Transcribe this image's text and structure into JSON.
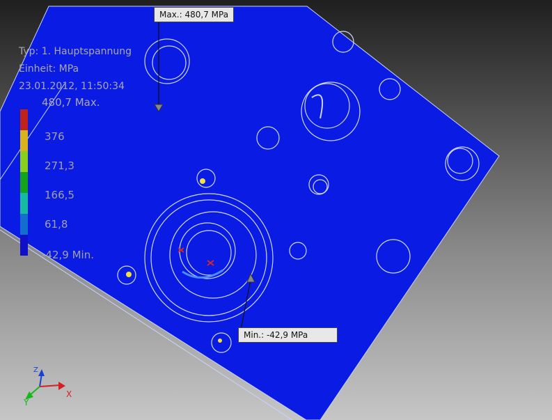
{
  "legend": {
    "type_label": "Typ: 1. Hauptspannung",
    "unit_label": "Einheit: MPa",
    "timestamp": "23.01.2012, 11:50:34",
    "max_label": "480,7 Max.",
    "min_label": "-42,9 Min.",
    "ticks": [
      "376",
      "271,3",
      "166,5",
      "61,8"
    ],
    "colors": [
      "#c0231b",
      "#d8b31d",
      "#8bcf1e",
      "#14a31c",
      "#17b9a3",
      "#136ed0",
      "#1010c8"
    ]
  },
  "probes": {
    "max": {
      "label": "Max.: 480,7 MPa"
    },
    "min": {
      "label": "Min.: -42,9 MPa"
    }
  },
  "axes": {
    "x": "X",
    "y": "Y",
    "z": "Z"
  },
  "colors": {
    "part": "#0a1be4",
    "edge": "#c8d4ff"
  }
}
